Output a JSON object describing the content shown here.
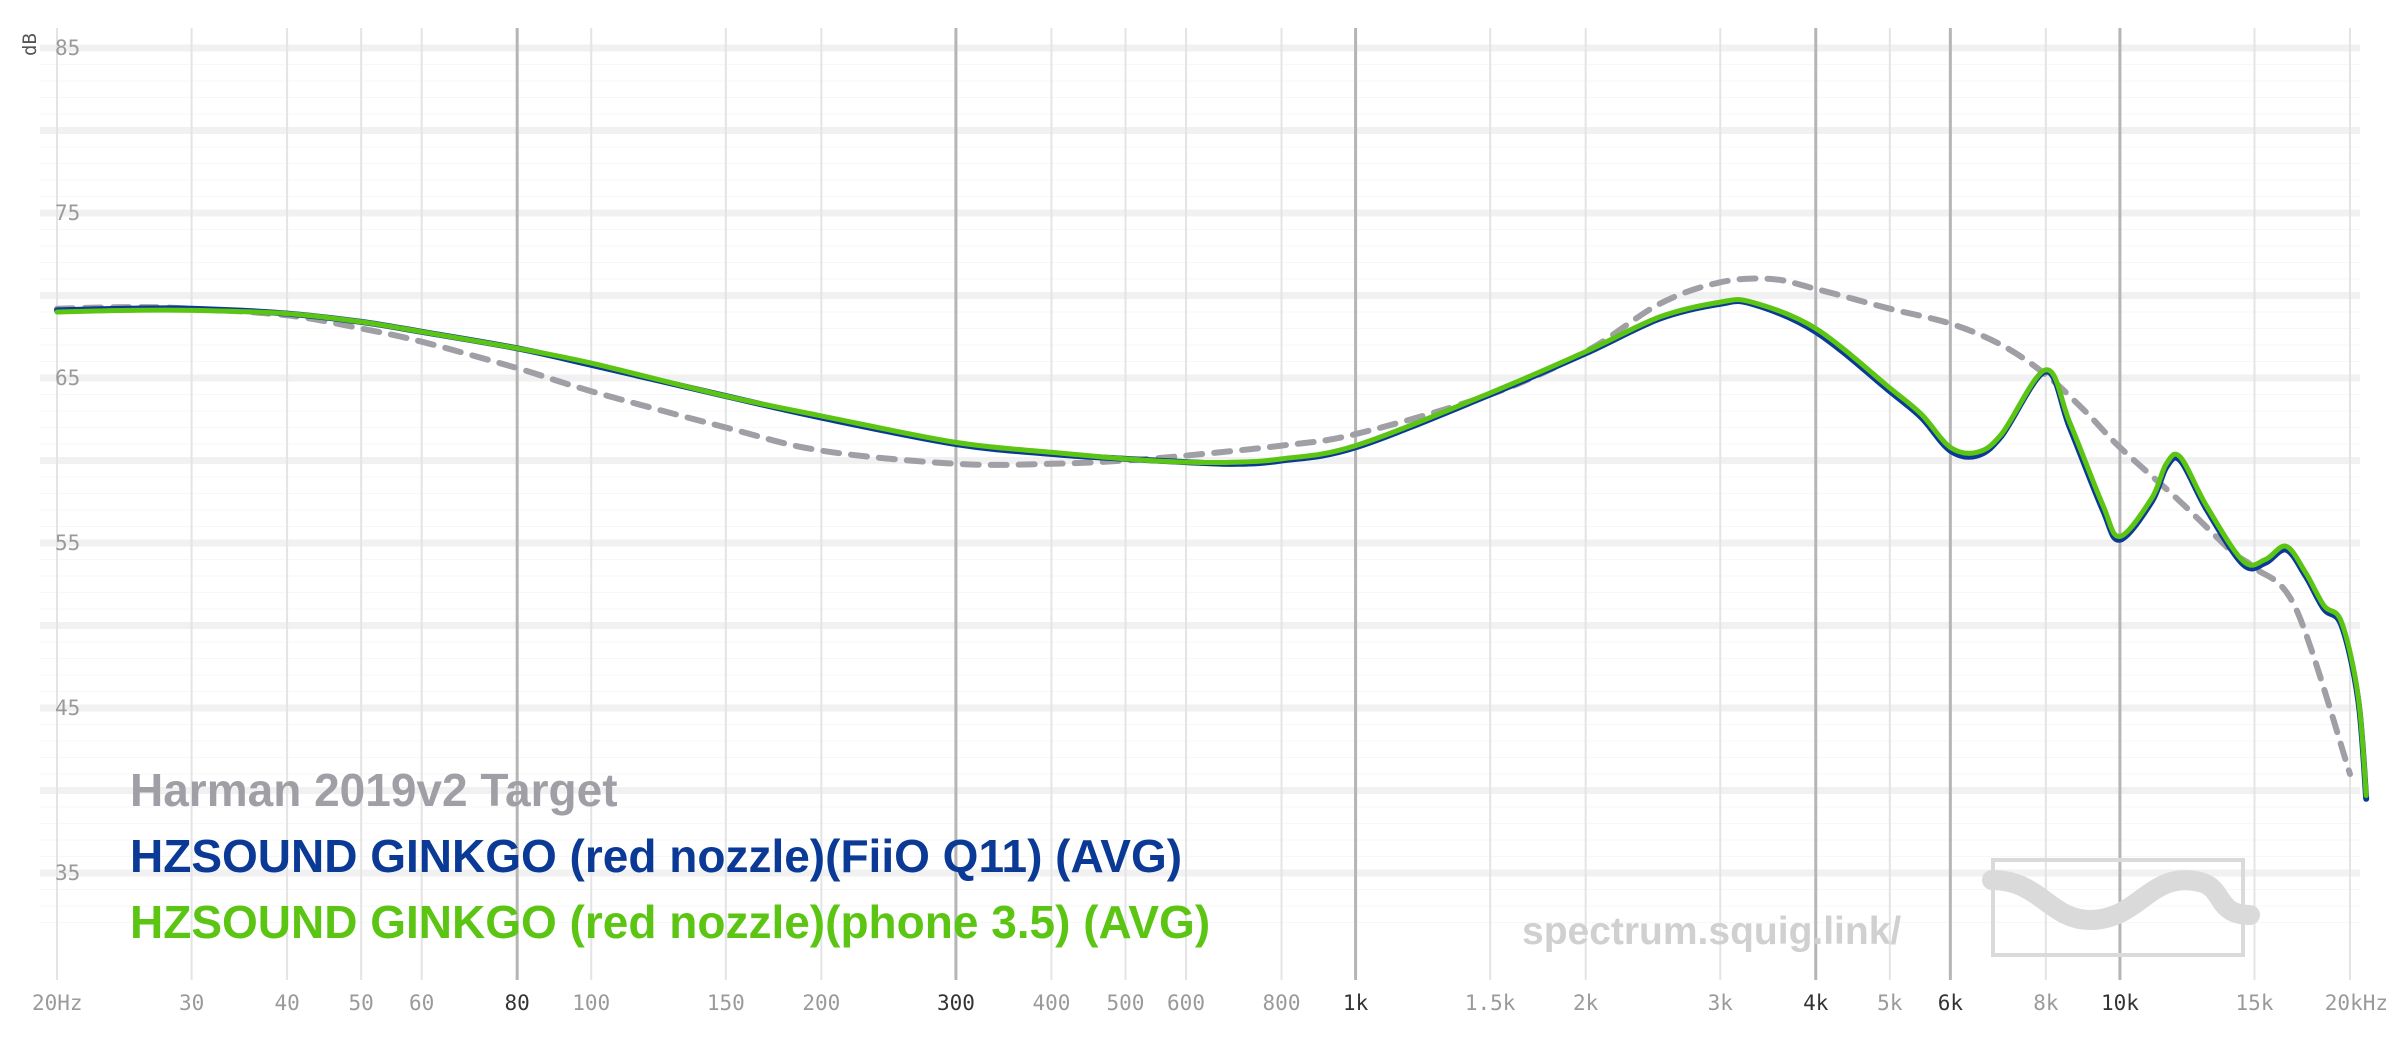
{
  "chart_data": {
    "type": "line",
    "x_scale": "log",
    "ylabel": "dB",
    "xlim": [
      20,
      20000
    ],
    "ylim": [
      30,
      86
    ],
    "grid": true,
    "legend_position": "bottom-left",
    "y_ticks": [
      {
        "value": 85,
        "label": "85"
      },
      {
        "value": 75,
        "label": "75"
      },
      {
        "value": 65,
        "label": "65"
      },
      {
        "value": 55,
        "label": "55"
      },
      {
        "value": 45,
        "label": "45"
      },
      {
        "value": 35,
        "label": "35"
      }
    ],
    "x_ticks": [
      {
        "value": 20,
        "label": "20Hz",
        "major": false
      },
      {
        "value": 30,
        "label": "30",
        "major": false
      },
      {
        "value": 40,
        "label": "40",
        "major": false
      },
      {
        "value": 50,
        "label": "50",
        "major": false
      },
      {
        "value": 60,
        "label": "60",
        "major": false
      },
      {
        "value": 80,
        "label": "80",
        "major": true
      },
      {
        "value": 100,
        "label": "100",
        "major": false
      },
      {
        "value": 150,
        "label": "150",
        "major": false
      },
      {
        "value": 200,
        "label": "200",
        "major": false
      },
      {
        "value": 300,
        "label": "300",
        "major": true
      },
      {
        "value": 400,
        "label": "400",
        "major": false
      },
      {
        "value": 500,
        "label": "500",
        "major": false
      },
      {
        "value": 600,
        "label": "600",
        "major": false
      },
      {
        "value": 800,
        "label": "800",
        "major": false
      },
      {
        "value": 1000,
        "label": "1k",
        "major": true
      },
      {
        "value": 1500,
        "label": "1.5k",
        "major": false
      },
      {
        "value": 2000,
        "label": "2k",
        "major": false
      },
      {
        "value": 3000,
        "label": "3k",
        "major": false
      },
      {
        "value": 4000,
        "label": "4k",
        "major": true
      },
      {
        "value": 5000,
        "label": "5k",
        "major": false
      },
      {
        "value": 6000,
        "label": "6k",
        "major": true
      },
      {
        "value": 8000,
        "label": "8k",
        "major": false
      },
      {
        "value": 10000,
        "label": "10k",
        "major": true
      },
      {
        "value": 15000,
        "label": "15k",
        "major": false
      },
      {
        "value": 20000,
        "label": "20kHz",
        "major": false
      }
    ],
    "series": [
      {
        "name": "Harman 2019v2 Target",
        "color": "#a09fa6",
        "dashed": true,
        "points": [
          [
            20,
            69.2
          ],
          [
            25,
            69.3
          ],
          [
            30,
            69.2
          ],
          [
            40,
            68.8
          ],
          [
            50,
            68.0
          ],
          [
            60,
            67.2
          ],
          [
            80,
            65.6
          ],
          [
            100,
            64.2
          ],
          [
            150,
            62.0
          ],
          [
            200,
            60.6
          ],
          [
            300,
            59.8
          ],
          [
            400,
            59.8
          ],
          [
            500,
            60.0
          ],
          [
            600,
            60.3
          ],
          [
            800,
            60.9
          ],
          [
            1000,
            61.6
          ],
          [
            1500,
            64.0
          ],
          [
            2000,
            66.6
          ],
          [
            2500,
            69.5
          ],
          [
            3000,
            70.8
          ],
          [
            3500,
            71.0
          ],
          [
            4000,
            70.4
          ],
          [
            5000,
            69.2
          ],
          [
            6000,
            68.3
          ],
          [
            7000,
            67.0
          ],
          [
            8000,
            65.2
          ],
          [
            9000,
            63.0
          ],
          [
            10000,
            60.8
          ],
          [
            12000,
            57.5
          ],
          [
            14000,
            54.5
          ],
          [
            15000,
            53.5
          ],
          [
            17000,
            51.0
          ],
          [
            20000,
            41.0
          ]
        ]
      },
      {
        "name": "HZSOUND GINKGO (red nozzle)(FiiO Q11) (AVG)",
        "color": "#0a3a96",
        "dashed": false,
        "points": [
          [
            20,
            69.1
          ],
          [
            25,
            69.2
          ],
          [
            30,
            69.2
          ],
          [
            40,
            68.9
          ],
          [
            50,
            68.4
          ],
          [
            60,
            67.8
          ],
          [
            80,
            66.8
          ],
          [
            100,
            65.8
          ],
          [
            150,
            63.9
          ],
          [
            200,
            62.6
          ],
          [
            300,
            61.0
          ],
          [
            400,
            60.4
          ],
          [
            500,
            60.1
          ],
          [
            600,
            59.9
          ],
          [
            700,
            59.8
          ],
          [
            800,
            60.0
          ],
          [
            1000,
            60.8
          ],
          [
            1500,
            64.0
          ],
          [
            2000,
            66.5
          ],
          [
            2500,
            68.6
          ],
          [
            3000,
            69.5
          ],
          [
            3300,
            69.5
          ],
          [
            4000,
            67.8
          ],
          [
            5000,
            64.2
          ],
          [
            5500,
            62.6
          ],
          [
            6000,
            60.6
          ],
          [
            6500,
            60.3
          ],
          [
            7000,
            61.5
          ],
          [
            8000,
            65.4
          ],
          [
            8600,
            62.0
          ],
          [
            9500,
            57.0
          ],
          [
            10000,
            55.2
          ],
          [
            11000,
            57.5
          ],
          [
            11500,
            59.6
          ],
          [
            12000,
            60.0
          ],
          [
            13000,
            57.0
          ],
          [
            14500,
            53.7
          ],
          [
            15500,
            53.8
          ],
          [
            16500,
            54.6
          ],
          [
            17500,
            53.0
          ],
          [
            18500,
            51.0
          ],
          [
            19500,
            50.0
          ],
          [
            20500,
            45.5
          ],
          [
            21000,
            39.5
          ]
        ]
      },
      {
        "name": "HZSOUND GINKGO (red nozzle)(phone 3.5) (AVG)",
        "color": "#5cc513",
        "dashed": false,
        "points": [
          [
            20,
            69.0
          ],
          [
            25,
            69.1
          ],
          [
            30,
            69.1
          ],
          [
            40,
            68.9
          ],
          [
            50,
            68.4
          ],
          [
            60,
            67.8
          ],
          [
            80,
            66.8
          ],
          [
            100,
            65.9
          ],
          [
            150,
            63.9
          ],
          [
            200,
            62.7
          ],
          [
            300,
            61.1
          ],
          [
            400,
            60.5
          ],
          [
            500,
            60.1
          ],
          [
            600,
            59.9
          ],
          [
            700,
            59.9
          ],
          [
            800,
            60.1
          ],
          [
            1000,
            60.9
          ],
          [
            1500,
            64.1
          ],
          [
            2000,
            66.6
          ],
          [
            2500,
            68.7
          ],
          [
            3000,
            69.6
          ],
          [
            3300,
            69.6
          ],
          [
            4000,
            68.0
          ],
          [
            5000,
            64.4
          ],
          [
            5500,
            62.8
          ],
          [
            6000,
            60.8
          ],
          [
            6500,
            60.5
          ],
          [
            7000,
            61.6
          ],
          [
            8000,
            65.5
          ],
          [
            8600,
            62.3
          ],
          [
            9500,
            57.3
          ],
          [
            10000,
            55.4
          ],
          [
            11000,
            57.7
          ],
          [
            11500,
            59.8
          ],
          [
            12000,
            60.2
          ],
          [
            13000,
            57.2
          ],
          [
            14500,
            53.9
          ],
          [
            15500,
            54.0
          ],
          [
            16500,
            54.8
          ],
          [
            17500,
            53.2
          ],
          [
            18500,
            51.2
          ],
          [
            19500,
            50.2
          ],
          [
            20500,
            45.7
          ],
          [
            21000,
            39.7
          ]
        ]
      }
    ]
  },
  "watermark": {
    "text": "spectrum.squig.link/",
    "logo_name": "squiglink-logo"
  }
}
